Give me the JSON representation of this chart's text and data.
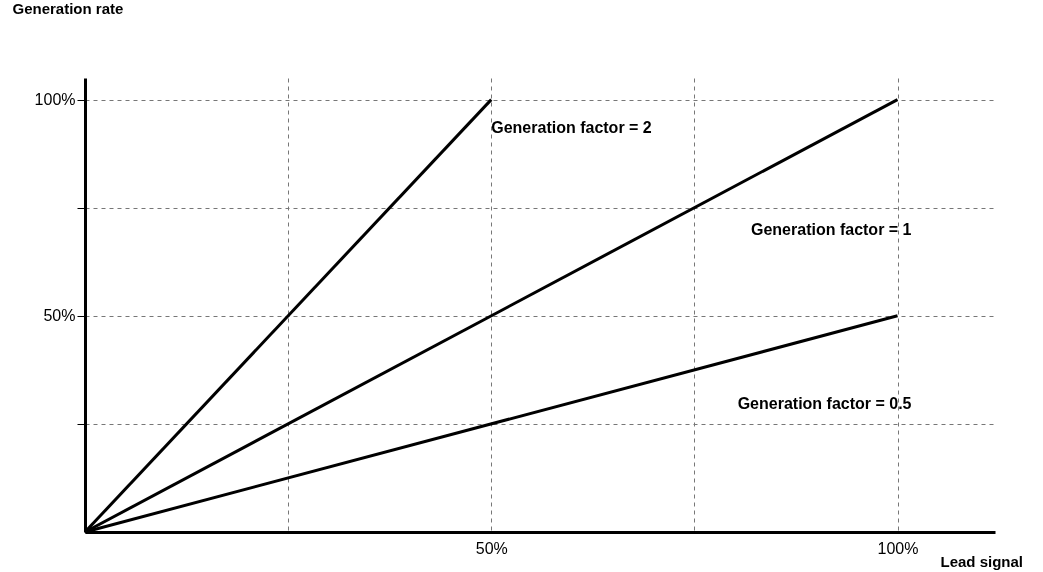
{
  "chart_data": {
    "type": "line",
    "xlabel": "Lead signal",
    "ylabel": "Generation rate",
    "xlim": [
      0,
      112
    ],
    "ylim": [
      0,
      105
    ],
    "xticks": [
      {
        "value": 25,
        "label": null
      },
      {
        "value": 50,
        "label": "50%"
      },
      {
        "value": 75,
        "label": null
      },
      {
        "value": 100,
        "label": "100%"
      }
    ],
    "yticks": [
      {
        "value": 25,
        "label": null
      },
      {
        "value": 50,
        "label": "50%"
      },
      {
        "value": 75,
        "label": null
      },
      {
        "value": 100,
        "label": "100%"
      }
    ],
    "grid": true,
    "marker": "none",
    "line_style": "solid",
    "legend": false,
    "series": [
      {
        "name": "Generation factor = 2",
        "color": "#000000",
        "x": [
          0,
          50
        ],
        "values": [
          0,
          100
        ]
      },
      {
        "name": "Generation factor = 1",
        "color": "#000000",
        "x": [
          0,
          100
        ],
        "values": [
          0,
          100
        ]
      },
      {
        "name": "Generation factor = 0.5",
        "color": "#000000",
        "x": [
          0,
          100
        ],
        "values": [
          0,
          50
        ]
      }
    ]
  }
}
